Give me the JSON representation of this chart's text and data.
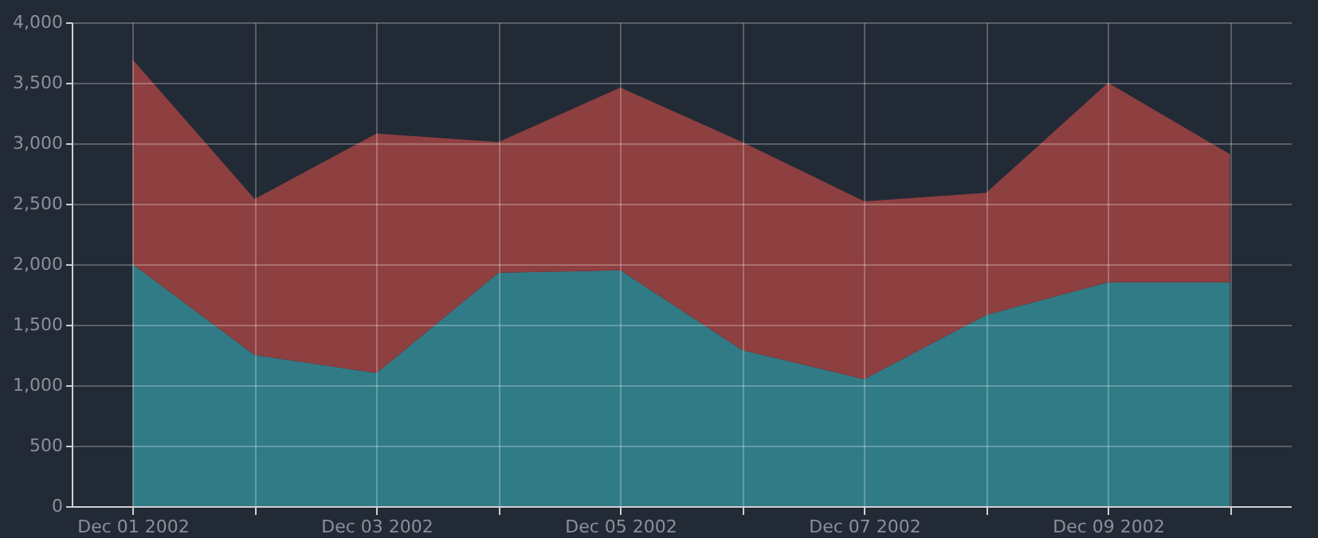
{
  "chart_data": {
    "type": "area",
    "stacked": true,
    "grid": true,
    "x": [
      "2002-12-01",
      "2002-12-02",
      "2002-12-03",
      "2002-12-04",
      "2002-12-05",
      "2002-12-06",
      "2002-12-07",
      "2002-12-08",
      "2002-12-09",
      "2002-12-10"
    ],
    "series": [
      {
        "color": "#317b87",
        "values": [
          2000,
          1250,
          1100,
          1930,
          1950,
          1290,
          1050,
          1580,
          1850,
          1850
        ]
      },
      {
        "color": "#8e3f40",
        "values": [
          1690,
          1290,
          1980,
          1080,
          1510,
          1720,
          1470,
          1010,
          1650,
          1060
        ]
      }
    ],
    "xlim": [
      "2002-11-30T12:00",
      "2002-12-10T12:00"
    ],
    "xticks": [
      {
        "value": "2002-12-01",
        "label": "Dec 01 2002"
      },
      {
        "value": "2002-12-02",
        "label": null
      },
      {
        "value": "2002-12-03",
        "label": "Dec 03 2002"
      },
      {
        "value": "2002-12-04",
        "label": null
      },
      {
        "value": "2002-12-05",
        "label": "Dec 05 2002"
      },
      {
        "value": "2002-12-06",
        "label": null
      },
      {
        "value": "2002-12-07",
        "label": "Dec 07 2002"
      },
      {
        "value": "2002-12-08",
        "label": null
      },
      {
        "value": "2002-12-09",
        "label": "Dec 09 2002"
      },
      {
        "value": "2002-12-10",
        "label": null
      }
    ],
    "ylim": [
      0,
      4000
    ],
    "yticks": [
      0,
      500,
      {
        "value": 1000,
        "label": "1,000"
      },
      {
        "value": 1500,
        "label": "1,500"
      },
      {
        "value": 2000,
        "label": "2,000"
      },
      {
        "value": 2500,
        "label": "2,500"
      },
      {
        "value": 3000,
        "label": "3,000"
      },
      {
        "value": 3500,
        "label": "3,500"
      },
      {
        "value": 4000,
        "label": "4,000"
      }
    ]
  }
}
